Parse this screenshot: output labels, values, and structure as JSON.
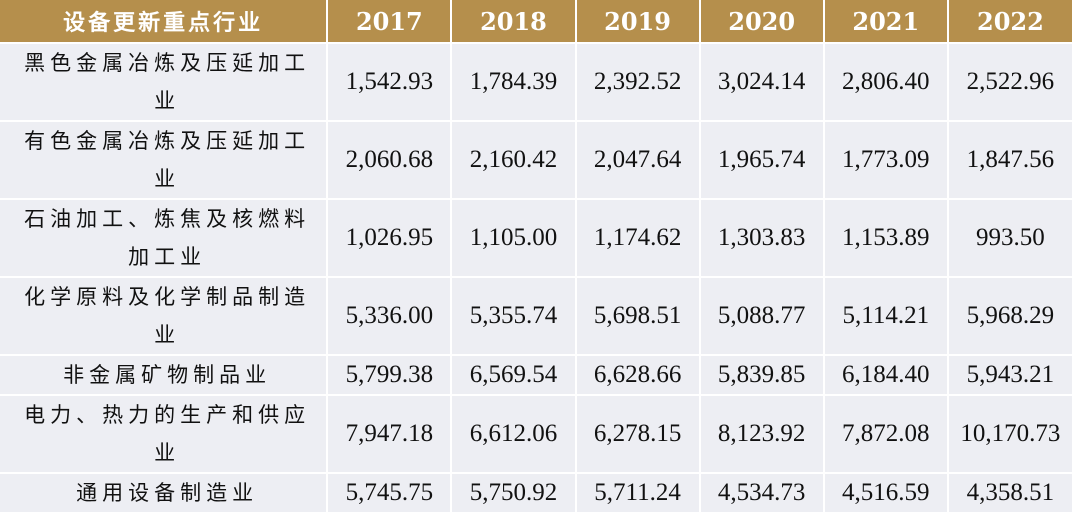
{
  "table": {
    "header": [
      "设备更新重点行业",
      "2017",
      "2018",
      "2019",
      "2020",
      "2021",
      "2022"
    ],
    "rows": [
      {
        "industry": "黑色金属冶炼及压延加工业",
        "values": [
          "1,542.93",
          "1,784.39",
          "2,392.52",
          "3,024.14",
          "2,806.40",
          "2,522.96"
        ]
      },
      {
        "industry": "有色金属冶炼及压延加工业",
        "values": [
          "2,060.68",
          "2,160.42",
          "2,047.64",
          "1,965.74",
          "1,773.09",
          "1,847.56"
        ]
      },
      {
        "industry": "石油加工、炼焦及核燃料加工业",
        "values": [
          "1,026.95",
          "1,105.00",
          "1,174.62",
          "1,303.83",
          "1,153.89",
          "993.50"
        ]
      },
      {
        "industry": "化学原料及化学制品制造业",
        "values": [
          "5,336.00",
          "5,355.74",
          "5,698.51",
          "5,088.77",
          "5,114.21",
          "5,968.29"
        ]
      },
      {
        "industry": "非金属矿物制品业",
        "values": [
          "5,799.38",
          "6,569.54",
          "6,628.66",
          "5,839.85",
          "6,184.40",
          "5,943.21"
        ]
      },
      {
        "industry": "电力、热力的生产和供应业",
        "values": [
          "7,947.18",
          "6,612.06",
          "6,278.15",
          "8,123.92",
          "7,872.08",
          "10,170.73"
        ]
      },
      {
        "industry": "通用设备制造业",
        "values": [
          "5,745.75",
          "5,750.92",
          "5,711.24",
          "4,534.73",
          "4,516.59",
          "4,358.51"
        ]
      }
    ]
  },
  "colors": {
    "header_bg": "#b58f4c",
    "row_bg": "#edeef3"
  }
}
